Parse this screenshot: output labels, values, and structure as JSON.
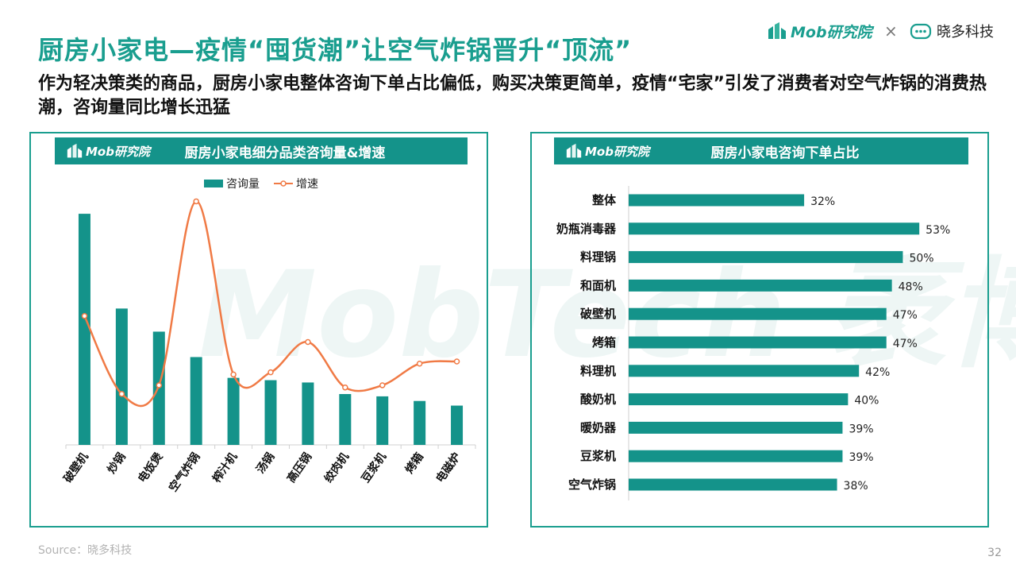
{
  "page": {
    "title": "厨房小家电—疫情“囤货潮”让空气炸锅晋升“顶流”",
    "subtitle": "作为轻决策类的商品，厨房小家电整体咨询下单占比偏低，购买决策更简单，疫情“宅家”引发了消费者对空气炸锅的消费热潮，咨询量同比增长迅猛",
    "brand_mob": "Mob研究院",
    "brand_x": "×",
    "brand_xd": "晓多科技",
    "watermark": "MobTech 袤博",
    "source": "Source：晓多科技",
    "page_number": "32"
  },
  "colors": {
    "accent": "#1a9e8f",
    "bar": "#14938a",
    "line": "#f07a45"
  },
  "left_panel": {
    "logo": "Mob研究院",
    "title": "厨房小家电细分品类咨询量&增速"
  },
  "right_panel": {
    "logo": "Mob研究院",
    "title": "厨房小家电咨询下单占比"
  },
  "chart_data": [
    {
      "type": "bar",
      "title": "厨房小家电细分品类咨询量&增速",
      "categories": [
        "破壁机",
        "炒锅",
        "电饭煲",
        "空气炸锅",
        "榨汁机",
        "汤锅",
        "高压锅",
        "绞肉机",
        "豆浆机",
        "烤箱",
        "电磁炉"
      ],
      "legend": [
        "咨询量",
        "增速"
      ],
      "legend_position": "top",
      "grid": false,
      "series": [
        {
          "name": "咨询量",
          "type": "bar",
          "values": [
            100,
            59,
            49,
            38,
            29,
            28,
            27,
            22,
            21,
            19,
            17
          ]
        },
        {
          "name": "增速",
          "type": "line",
          "values": [
            50,
            14,
            18,
            103,
            23,
            24,
            38,
            17,
            18,
            28,
            29
          ]
        }
      ],
      "ylim": [
        0,
        110
      ]
    },
    {
      "type": "bar",
      "orientation": "horizontal",
      "title": "厨房小家电咨询下单占比",
      "categories": [
        "整体",
        "奶瓶消毒器",
        "料理锅",
        "和面机",
        "破壁机",
        "烤箱",
        "料理机",
        "酸奶机",
        "暖奶器",
        "豆浆机",
        "空气炸锅"
      ],
      "values": [
        32,
        53,
        50,
        48,
        47,
        47,
        42,
        40,
        39,
        39,
        38
      ],
      "value_labels": [
        "32%",
        "53%",
        "50%",
        "48%",
        "47%",
        "47%",
        "42%",
        "40%",
        "39%",
        "39%",
        "38%"
      ],
      "xlim": [
        0,
        55
      ],
      "grid": false
    }
  ]
}
